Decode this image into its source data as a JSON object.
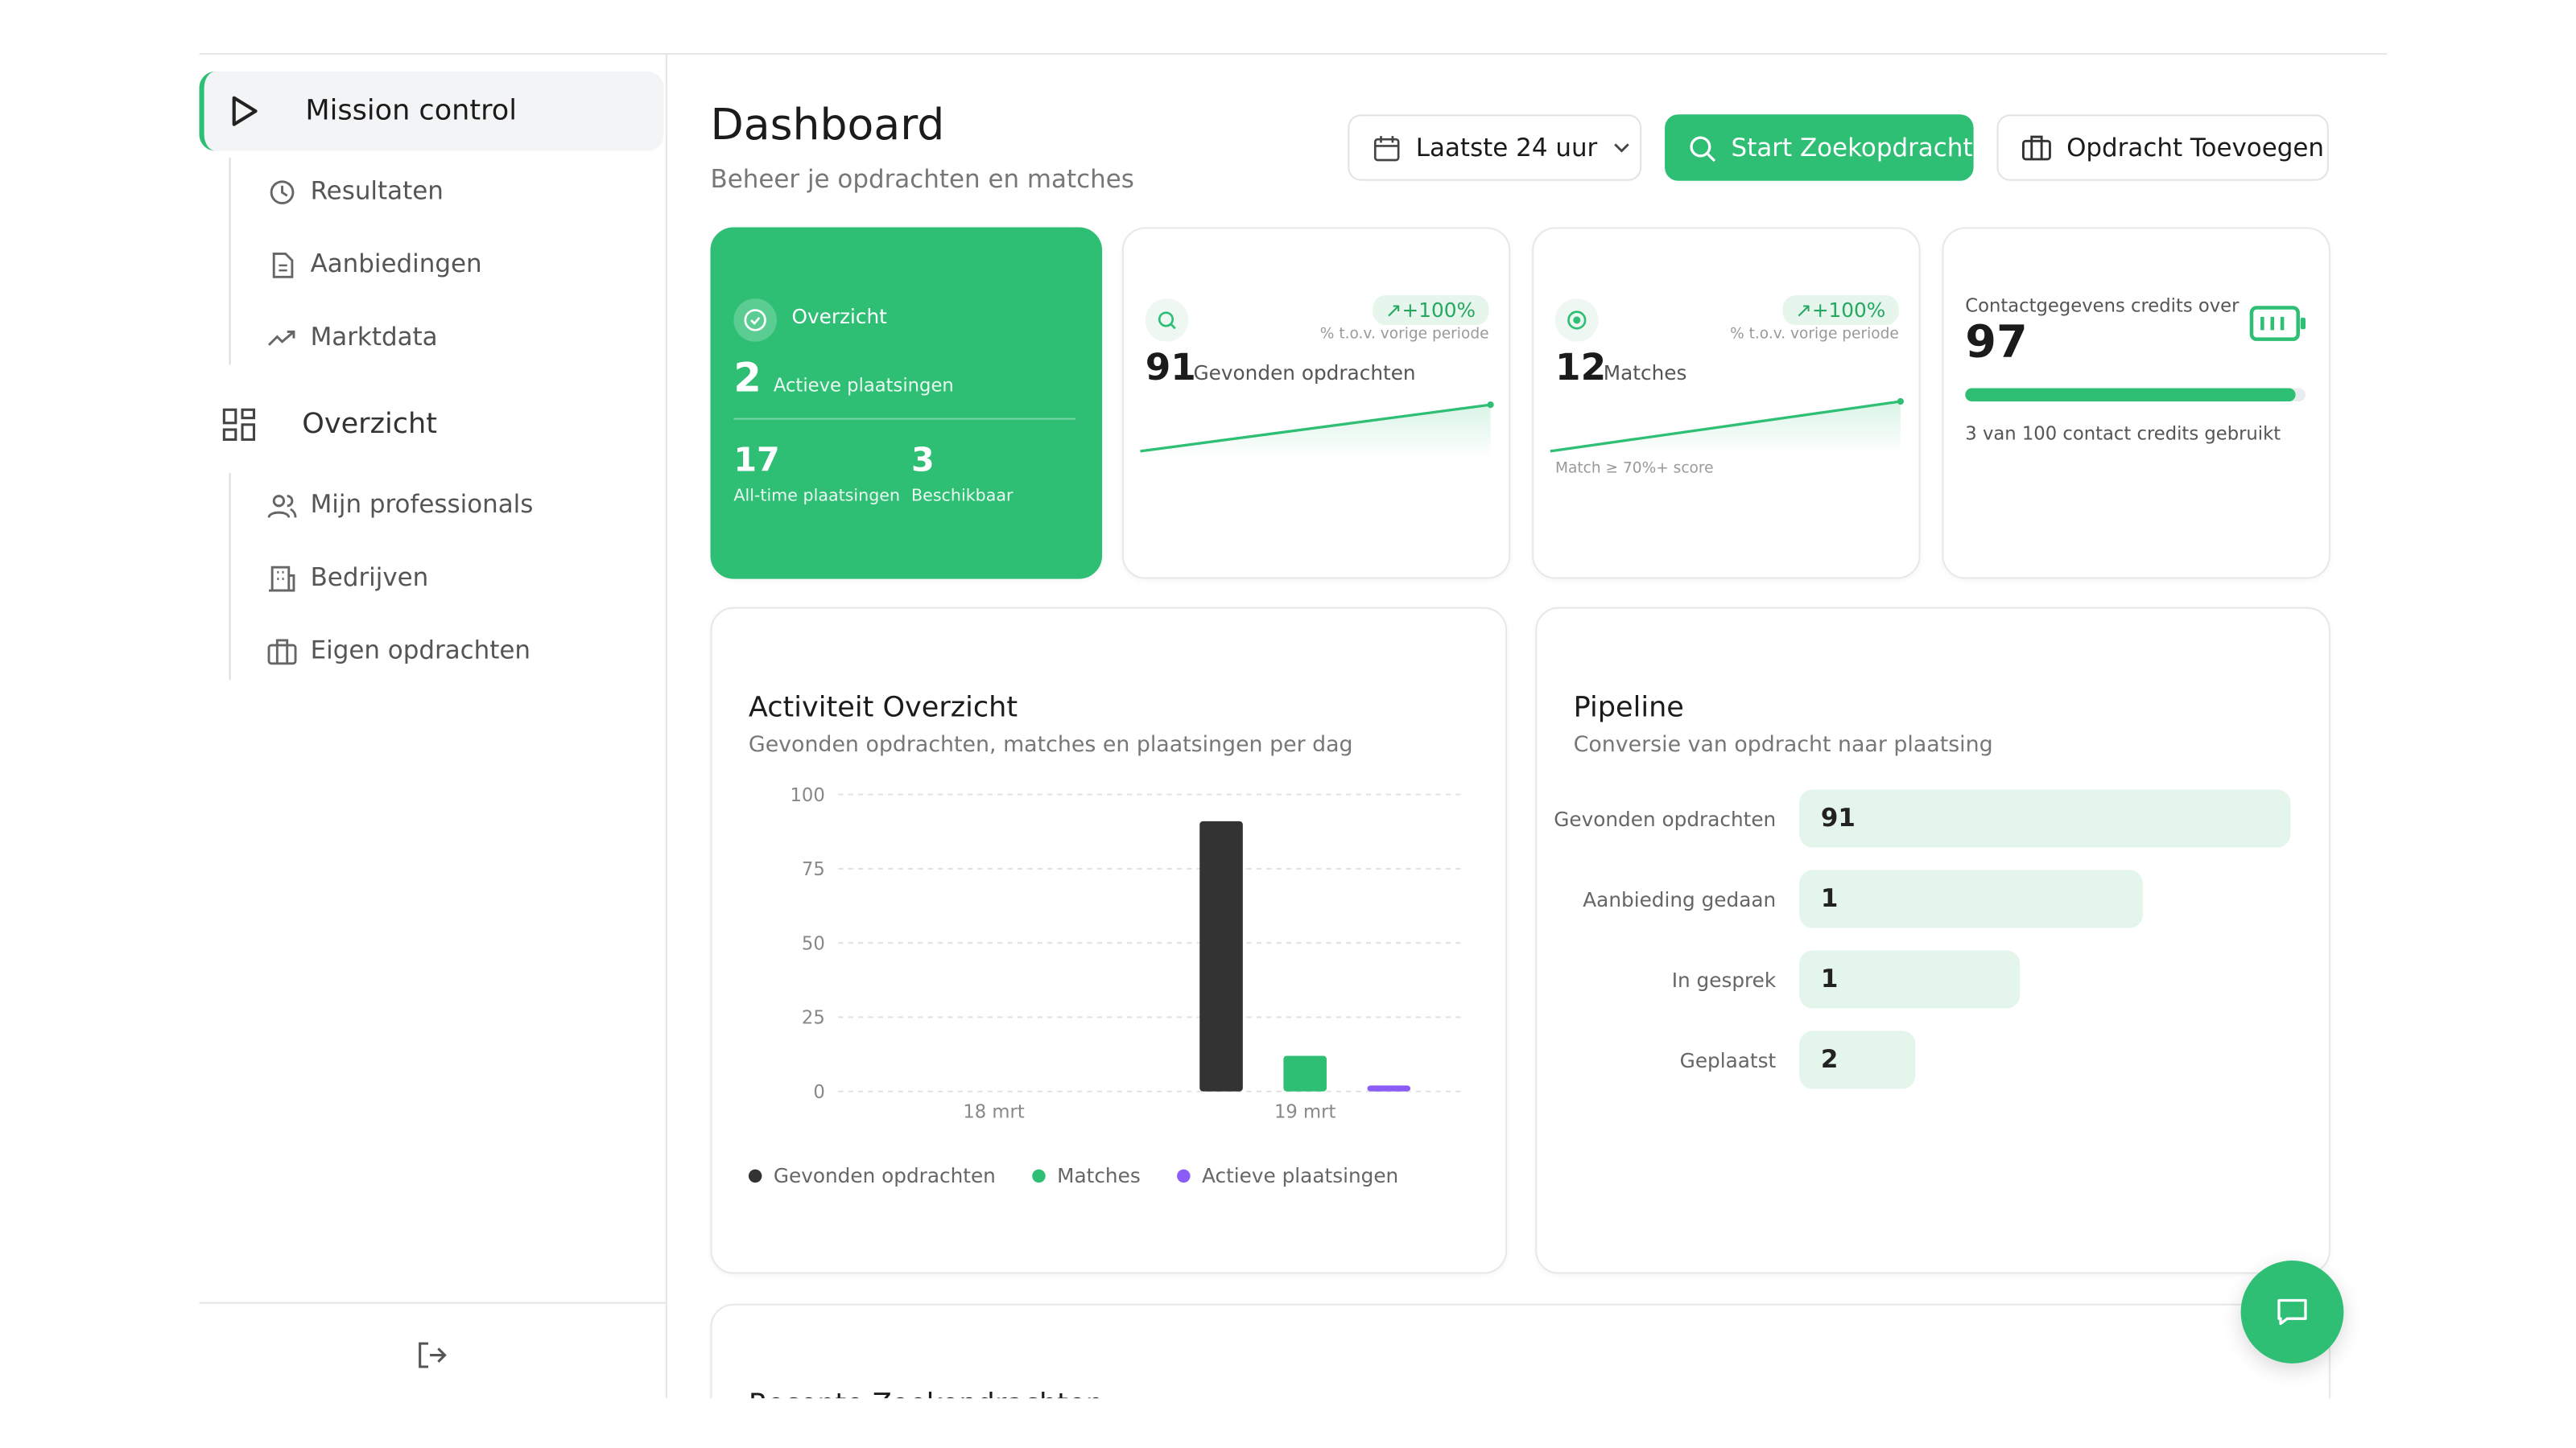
{
  "sidebar": {
    "sections": [
      {
        "label": "Mission control",
        "items": [
          "Resultaten",
          "Aanbiedingen",
          "Marktdata"
        ]
      },
      {
        "label": "Overzicht",
        "items": [
          "Mijn professionals",
          "Bedrijven",
          "Eigen opdrachten"
        ]
      }
    ]
  },
  "header": {
    "title": "Dashboard",
    "subtitle": "Beheer je opdrachten en matches",
    "period": "Laatste 24 uur",
    "primary_button": "Start Zoekopdracht",
    "secondary_button": "Opdracht Toevoegen"
  },
  "cards": {
    "overview": {
      "title": "Overzicht",
      "active": 2,
      "active_label": "Actieve plaatsingen",
      "all_time": 17,
      "all_time_label": "All-time plaatsingen",
      "available": 3,
      "available_label": "Beschikbaar"
    },
    "found": {
      "change": "+100%",
      "change_label": "% t.o.v. vorige periode",
      "value": 91,
      "label": "Gevonden opdrachten"
    },
    "matches": {
      "change": "+100%",
      "change_label": "% t.o.v. vorige periode",
      "value": 12,
      "label": "Matches",
      "note": "Match ≥ 70%+ score"
    },
    "credits": {
      "title": "Contactgegevens credits over",
      "remaining": 97,
      "used": 3,
      "total": 100,
      "usage_text": [
        "van",
        "contact credits gebruikt"
      ]
    }
  },
  "activity": {
    "type": "bar",
    "title": "Activiteit Overzicht",
    "subtitle": "Gevonden opdrachten, matches en plaatsingen per dag",
    "categories": [
      "18 mrt",
      "19 mrt"
    ],
    "series": [
      {
        "name": "Gevonden opdrachten",
        "color": "#333333",
        "values": [
          0,
          91
        ]
      },
      {
        "name": "Matches",
        "color": "#2ebf75",
        "values": [
          0,
          12
        ]
      },
      {
        "name": "Actieve plaatsingen",
        "color": "#8b5cf6",
        "values": [
          0,
          2
        ]
      }
    ],
    "ylim": [
      0,
      100
    ],
    "yticks": [
      0,
      25,
      50,
      75,
      100
    ],
    "grid": true
  },
  "pipeline": {
    "type": "bar",
    "title": "Pipeline",
    "subtitle": "Conversie van opdracht naar plaatsing",
    "categories": [
      "Gevonden opdrachten",
      "Aanbieding gedaan",
      "In gesprek",
      "Geplaatst"
    ],
    "values": [
      91,
      1,
      1,
      2
    ],
    "color": "#e4f6ec"
  },
  "recent": {
    "title": "Recente Zoekopdrachten"
  }
}
